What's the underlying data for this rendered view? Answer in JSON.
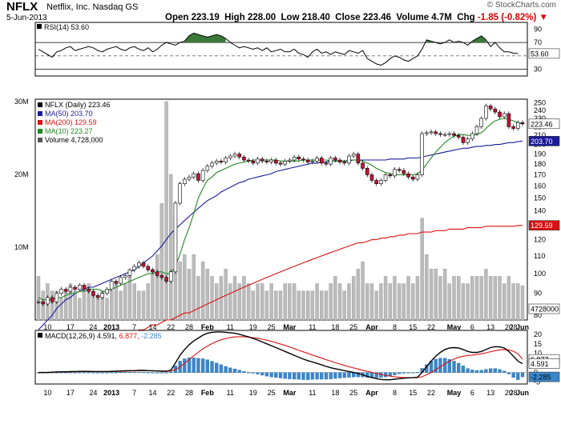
{
  "header": {
    "ticker": "NFLX",
    "company": "Netflix, Inc.  Nasdaq GS",
    "date": "5-Jun-2013",
    "open_label": "Open",
    "open": "223.19",
    "high_label": "High",
    "high": "228.00",
    "low_label": "Low",
    "low": "218.40",
    "close_label": "Close",
    "close": "223.46",
    "volume_label": "Volume",
    "volume": "4.7M",
    "chg_label": "Chg",
    "chg": "-1.85 (-0.82%)",
    "chg_icon": "down-triangle-icon",
    "logo": "© StockCharts.com"
  },
  "colors": {
    "up": "#ffffff",
    "down": "#cc1133",
    "ma50": "#1a1a99",
    "ma200": "#dd1111",
    "ma10": "#228822",
    "volume": "#bbbbbb",
    "rsi_fill": "#3a7a3a",
    "macd_line": "#000000",
    "signal_line": "#dd1111",
    "hist": "#3a88cc"
  },
  "chart_data": [
    {
      "type": "line",
      "panel": "RSI",
      "legend": "RSI(14) 53.60",
      "last_value": "53.60",
      "y_ticks": [
        "90",
        "70",
        "50",
        "30"
      ],
      "ylim": [
        20,
        100
      ],
      "reference_lines": [
        70,
        30
      ],
      "values": [
        60,
        56,
        52,
        48,
        56,
        58,
        62,
        64,
        58,
        60,
        62,
        64,
        62,
        58,
        56,
        60,
        62,
        64,
        60,
        58,
        62,
        64,
        60,
        58,
        62,
        56,
        60,
        66,
        70,
        68,
        66,
        70,
        72,
        80,
        84,
        82,
        80,
        78,
        80,
        82,
        80,
        76,
        70,
        66,
        62,
        64,
        62,
        60,
        62,
        58,
        62,
        56,
        58,
        60,
        56,
        56,
        60,
        54,
        52,
        48,
        56,
        60,
        54,
        56,
        52,
        56,
        54,
        52,
        58,
        56,
        54,
        58,
        46,
        42,
        38,
        36,
        40,
        46,
        50,
        48,
        44,
        42,
        46,
        50,
        60,
        74,
        72,
        70,
        68,
        70,
        74,
        70,
        72,
        70,
        66,
        72,
        76,
        80,
        74,
        64,
        70,
        62,
        56,
        56,
        54,
        53.6
      ]
    },
    {
      "type": "line",
      "panel": "Price",
      "title": "NFLX (Daily) 223.46",
      "legend": [
        "NFLX (Daily) 223.46",
        "MA(50) 203.70",
        "MA(200) 129.59",
        "MA(10) 223.27",
        "Volume 4,728,000"
      ],
      "y_ticks": [
        "250",
        "240",
        "230",
        "220",
        "210",
        "200",
        "190",
        "180",
        "170",
        "160",
        "150",
        "140",
        "130",
        "120",
        "110",
        "100",
        "90",
        "80"
      ],
      "y_scale": "log",
      "ylim": [
        78,
        255
      ],
      "price_tags": {
        "close": "223.46",
        "ma50": "203.70",
        "ma200": "129.59"
      },
      "x_tick_labels": [
        "10",
        "17",
        "24",
        "2013",
        "7",
        "14",
        "22",
        "28",
        "Feb",
        "11",
        "19",
        "25",
        "Mar",
        "11",
        "18",
        "25",
        "Apr",
        "8",
        "15",
        "22",
        "May",
        "6",
        "13",
        "20",
        "28",
        "Jun"
      ],
      "bold_tick_labels": [
        "2013",
        "Feb",
        "Mar",
        "Apr",
        "May",
        "Jun"
      ],
      "close": [
        86,
        85,
        88,
        86,
        90,
        92,
        91,
        93,
        92,
        94,
        92,
        91,
        89,
        88,
        90,
        92,
        96,
        95,
        98,
        99,
        102,
        104,
        106,
        104,
        102,
        101,
        99,
        98,
        96,
        101,
        146,
        162,
        166,
        168,
        171,
        165,
        174,
        178,
        181,
        183,
        182,
        186,
        188,
        190,
        187,
        184,
        183,
        181,
        185,
        183,
        182,
        184,
        181,
        180,
        183,
        184,
        187,
        185,
        184,
        182,
        183,
        186,
        181,
        180,
        186,
        184,
        182,
        181,
        188,
        190,
        181,
        176,
        170,
        165,
        162,
        165,
        170,
        169,
        175,
        174,
        171,
        168,
        166,
        170,
        212,
        213,
        214,
        212,
        211,
        211,
        212,
        210,
        208,
        202,
        206,
        212,
        220,
        230,
        246,
        242,
        238,
        232,
        236,
        220,
        218,
        225,
        223.46
      ],
      "ma50": [
        74,
        76,
        78,
        80,
        83,
        85,
        87,
        88,
        90,
        91,
        92,
        93,
        93,
        94,
        95,
        96,
        97,
        98,
        99,
        100,
        101,
        102,
        104,
        106,
        108,
        110,
        113,
        116,
        120,
        124,
        127,
        130,
        133,
        136,
        139,
        142,
        145,
        148,
        150,
        152,
        155,
        157,
        159,
        161,
        163,
        164,
        166,
        167,
        168,
        169,
        170,
        171,
        173,
        174,
        175,
        176,
        177,
        178,
        179,
        180,
        181,
        181,
        182,
        182,
        183,
        183,
        183,
        183,
        183,
        184,
        184,
        184,
        184,
        184,
        184,
        184,
        184,
        185,
        185,
        185,
        185,
        186,
        186,
        186,
        187,
        188,
        189,
        190,
        191,
        192,
        193,
        194,
        195,
        196,
        196,
        197,
        198,
        198,
        199,
        199,
        200,
        200,
        201,
        202,
        202,
        203,
        203.7
      ],
      "ma200": [
        62,
        62,
        63,
        63,
        64,
        64,
        65,
        65,
        66,
        66,
        67,
        67,
        68,
        68,
        69,
        69,
        70,
        71,
        71,
        72,
        72,
        73,
        74,
        74,
        75,
        76,
        76,
        77,
        78,
        78,
        79,
        80,
        81,
        81,
        82,
        83,
        84,
        85,
        86,
        87,
        88,
        89,
        90,
        91,
        92,
        93,
        94,
        95,
        96,
        97,
        98,
        99,
        100,
        101,
        102,
        103,
        104,
        105,
        106,
        107,
        108,
        109,
        110,
        111,
        112,
        113,
        114,
        115,
        116,
        117,
        118,
        118,
        119,
        120,
        120,
        121,
        121,
        122,
        122,
        123,
        123,
        124,
        124,
        124,
        125,
        125,
        125,
        126,
        126,
        126,
        127,
        127,
        127,
        127,
        128,
        128,
        128,
        128,
        129,
        129,
        129,
        129,
        129,
        129,
        129,
        129.5,
        129.59
      ],
      "ma10": [
        88,
        87,
        87,
        87,
        88,
        88,
        89,
        90,
        90,
        91,
        91,
        92,
        92,
        92,
        91,
        91,
        92,
        93,
        94,
        95,
        96,
        97,
        98,
        99,
        100,
        100,
        101,
        101,
        100,
        100,
        104,
        111,
        120,
        128,
        138,
        150,
        158,
        165,
        168,
        172,
        174,
        176,
        178,
        180,
        181,
        182,
        183,
        184,
        184,
        184,
        184,
        184,
        184,
        183,
        183,
        183,
        183,
        183,
        184,
        184,
        184,
        184,
        184,
        184,
        183,
        183,
        183,
        183,
        184,
        184,
        184,
        183,
        181,
        179,
        176,
        174,
        172,
        171,
        170,
        170,
        170,
        170,
        170,
        171,
        174,
        180,
        186,
        192,
        197,
        202,
        206,
        209,
        211,
        211,
        210,
        210,
        211,
        213,
        218,
        223,
        227,
        229,
        230,
        229,
        227,
        225,
        223.27
      ],
      "volume_y_ticks": [
        "30M",
        "20M",
        "10M"
      ],
      "volume_last": "4728000",
      "volume_m": [
        6,
        4,
        5,
        4,
        4,
        3,
        4,
        5,
        4,
        3,
        4,
        5,
        4,
        3,
        4,
        3,
        4,
        5,
        4,
        5,
        6,
        5,
        4,
        4,
        5,
        7,
        9,
        16,
        30,
        20,
        14,
        8,
        9,
        7,
        9,
        6,
        8,
        7,
        6,
        5,
        6,
        7,
        5,
        6,
        5,
        6,
        5,
        4,
        5,
        5,
        4,
        5,
        4,
        4,
        5,
        5,
        5,
        4,
        4,
        4,
        4,
        5,
        4,
        4,
        5,
        6,
        5,
        4,
        5,
        6,
        7,
        8,
        5,
        5,
        4,
        5,
        6,
        5,
        6,
        5,
        5,
        6,
        5,
        6,
        14,
        9,
        7,
        7,
        6,
        7,
        5,
        6,
        6,
        5,
        5,
        6,
        6,
        6,
        7,
        6,
        6,
        6,
        5,
        6,
        5,
        5,
        4.7
      ]
    },
    {
      "type": "line",
      "panel": "MACD",
      "legend": {
        "prefix": "MACD(12,26,9)",
        "macd": "4.591",
        "signal": "6.877",
        "hist": "-2.285"
      },
      "y_ticks": [
        "20",
        "15",
        "10",
        "5",
        "0",
        "-5"
      ],
      "ylim": [
        -6,
        22
      ],
      "tags": {
        "signal": "6.877",
        "macd": "4.591",
        "hist": "-2.285"
      },
      "macd": [
        0,
        0,
        0,
        0.2,
        0.3,
        0.4,
        0.4,
        0.5,
        0.5,
        0.6,
        0.6,
        0.6,
        0.5,
        0.5,
        0.5,
        0.5,
        0.6,
        0.7,
        0.8,
        0.9,
        1,
        1,
        1.1,
        1.1,
        1,
        0.9,
        0.8,
        0.7,
        0.6,
        1.2,
        5,
        9,
        12,
        14.5,
        16.5,
        18,
        19.5,
        20.5,
        21,
        21.2,
        21.2,
        21,
        20.8,
        20.5,
        20,
        19.3,
        18.6,
        17.8,
        17,
        16,
        15,
        14,
        13,
        12,
        11,
        10,
        9,
        8,
        7,
        6.2,
        5.5,
        4.8,
        4,
        3.2,
        2.5,
        2,
        1.5,
        1,
        0.5,
        0,
        -0.5,
        -1.2,
        -2,
        -2.6,
        -3.2,
        -3.6,
        -3.8,
        -3.8,
        -3.5,
        -3.2,
        -3,
        -2.8,
        -2.7,
        -2.5,
        0,
        3,
        6,
        8.5,
        10.5,
        12,
        12.8,
        13,
        12.8,
        12,
        11,
        10.5,
        10.5,
        11,
        12,
        13,
        13.5,
        13.4,
        12.8,
        11,
        8.5,
        6,
        4.591
      ],
      "signal": [
        0,
        0,
        0,
        0.1,
        0.2,
        0.3,
        0.3,
        0.4,
        0.4,
        0.5,
        0.5,
        0.5,
        0.5,
        0.5,
        0.5,
        0.5,
        0.5,
        0.6,
        0.6,
        0.7,
        0.8,
        0.8,
        0.9,
        0.9,
        0.9,
        0.9,
        0.9,
        0.8,
        0.8,
        0.8,
        1.5,
        3,
        4.8,
        6.8,
        8.8,
        10.6,
        12.3,
        13.8,
        15.1,
        16.2,
        17.1,
        17.8,
        18.3,
        18.6,
        18.7,
        18.7,
        18.5,
        18.2,
        17.9,
        17.4,
        16.9,
        16.3,
        15.6,
        14.9,
        14.2,
        13.4,
        12.5,
        11.6,
        10.8,
        10,
        9.1,
        8.3,
        7.5,
        6.7,
        5.9,
        5.1,
        4.4,
        3.7,
        3,
        2.4,
        1.8,
        1.2,
        0.6,
        0.1,
        -0.5,
        -1,
        -1.5,
        -1.9,
        -2.2,
        -2.5,
        -2.6,
        -2.7,
        -2.7,
        -2.7,
        -2.2,
        -1.2,
        0,
        1.5,
        3,
        4.5,
        5.9,
        7,
        7.9,
        8.5,
        8.9,
        9.1,
        9.4,
        9.8,
        10.3,
        10.9,
        11.4,
        11.8,
        12,
        11.8,
        11.1,
        9.8,
        6.877
      ]
    }
  ],
  "logo_text": "© StockCharts.com"
}
